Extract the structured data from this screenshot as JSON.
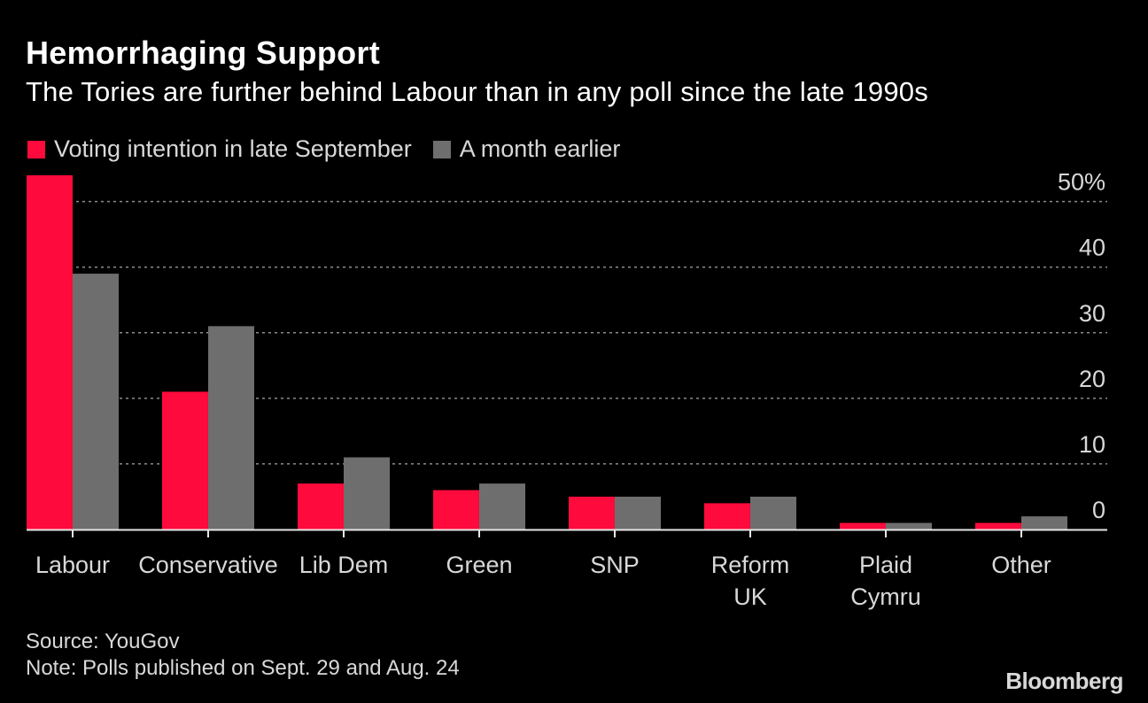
{
  "header": {
    "title": "Hemorrhaging Support",
    "subtitle": "The Tories are further behind Labour than in any poll since the late 1990s"
  },
  "legend": {
    "items": [
      {
        "label": "Voting intention in late September",
        "color": "#ff0a3c"
      },
      {
        "label": "A month earlier",
        "color": "#6e6e6e"
      }
    ]
  },
  "chart_data": {
    "type": "bar",
    "categories": [
      [
        "Labour"
      ],
      [
        "Conservative"
      ],
      [
        "Lib Dem"
      ],
      [
        "Green"
      ],
      [
        "SNP"
      ],
      [
        "Reform",
        "UK"
      ],
      [
        "Plaid",
        "Cymru"
      ],
      [
        "Other"
      ]
    ],
    "series": [
      {
        "name": "Voting intention in late September",
        "color": "#ff0a3c",
        "values": [
          54,
          21,
          7,
          6,
          5,
          4,
          1,
          1
        ]
      },
      {
        "name": "A month earlier",
        "color": "#6e6e6e",
        "values": [
          39,
          31,
          11,
          7,
          5,
          5,
          1,
          2
        ]
      }
    ],
    "y_ticks": [
      {
        "value": 0,
        "label": "0"
      },
      {
        "value": 10,
        "label": "10"
      },
      {
        "value": 20,
        "label": "20"
      },
      {
        "value": 30,
        "label": "30"
      },
      {
        "value": 40,
        "label": "40"
      },
      {
        "value": 50,
        "label": "50%"
      }
    ],
    "ylim": [
      0,
      54
    ],
    "grid": true,
    "y_axis_side": "right",
    "title": "Hemorrhaging Support",
    "xlabel": "",
    "ylabel": ""
  },
  "footer": {
    "source": "Source: YouGov",
    "note": "Note: Polls published on Sept. 29 and Aug. 24",
    "brand": "Bloomberg"
  }
}
